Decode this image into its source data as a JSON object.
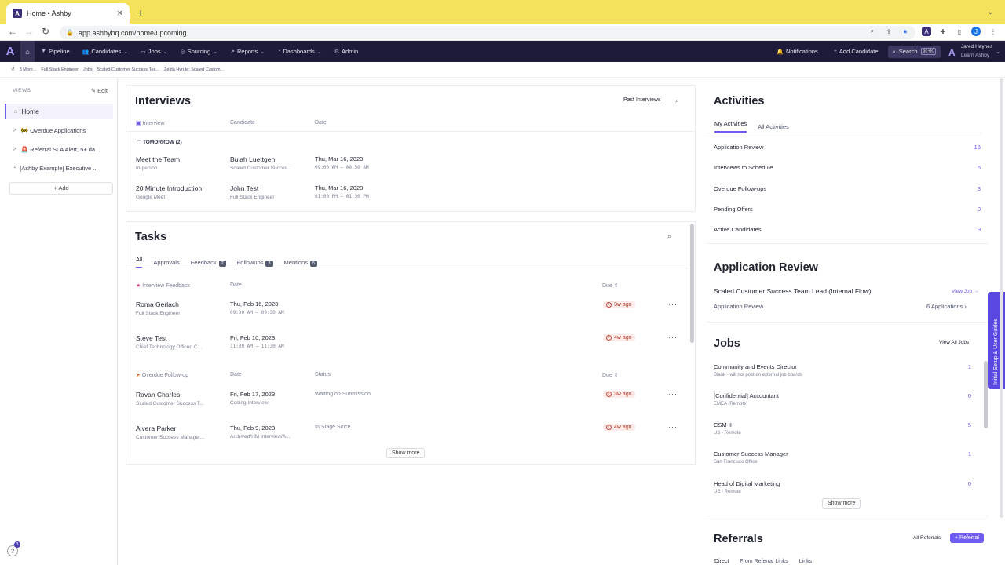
{
  "browser": {
    "tab_title": "Home • Ashby",
    "url": "app.ashbyhq.com/home/upcoming"
  },
  "nav": {
    "items": [
      "Pipeline",
      "Candidates",
      "Jobs",
      "Sourcing",
      "Reports",
      "Dashboards",
      "Admin"
    ],
    "notifications": "Notifications",
    "add_candidate": "Add Candidate",
    "search": "Search",
    "search_kbd": "⌘+K",
    "user_name": "Jared Haynes",
    "user_sub": "Learn Ashby"
  },
  "breadcrumbs": [
    "3 More...",
    "Full Stack Engineer",
    "Jobs",
    "Scaled Customer Success Tea...",
    "Zelda Hyrule: Scaled Custom..."
  ],
  "sidebar": {
    "heading": "VIEWS",
    "edit": "Edit",
    "items": [
      {
        "label": "Home",
        "icon": "home-icon"
      },
      {
        "label": "🚧 Overdue Applications",
        "icon": "chart-icon"
      },
      {
        "label": "🚨 Referral SLA Alert, 5+ da...",
        "icon": "chart-icon"
      },
      {
        "label": "[Ashby Example] Executive ...",
        "icon": "gauge-icon"
      }
    ],
    "add": "+ Add"
  },
  "interviews": {
    "title": "Interviews",
    "past": "Past Interviews",
    "headers": {
      "interview": "Interview",
      "candidate": "Candidate",
      "date": "Date"
    },
    "group": "TOMORROW (2)",
    "rows": [
      {
        "title": "Meet the Team",
        "mode": "In-person",
        "candidate": "Bulah Luettgen",
        "role": "Scaled Customer Succes...",
        "date": "Thu, Mar 16, 2023",
        "time": "09:00 AM — 09:30 AM"
      },
      {
        "title": "20 Minute Introduction",
        "mode": "Google Meet",
        "candidate": "John Test",
        "role": "Full Stack Engineer",
        "date": "Thu, Mar 16, 2023",
        "time": "01:00 PM — 01:30 PM"
      }
    ]
  },
  "tasks": {
    "title": "Tasks",
    "tabs": [
      {
        "label": "All"
      },
      {
        "label": "Approvals"
      },
      {
        "label": "Feedback",
        "count": "2"
      },
      {
        "label": "Followups",
        "count": "3"
      },
      {
        "label": "Mentions",
        "count": "5"
      }
    ],
    "feedback_header": {
      "label": "Interview Feedback",
      "date": "Date",
      "due": "Due"
    },
    "feedback_rows": [
      {
        "name": "Roma Gerlach",
        "role": "Full Stack Engineer",
        "date": "Thu, Feb 16, 2023",
        "time": "09:00 AM — 09:30 AM",
        "due": "3w ago"
      },
      {
        "name": "Steve Test",
        "role": "Chief Technology Officer, C...",
        "date": "Fri, Feb 10, 2023",
        "time": "11:00 AM — 11:30 AM",
        "due": "4w ago"
      }
    ],
    "followup_header": {
      "label": "Overdue Follow-up",
      "date": "Date",
      "status": "Status",
      "due": "Due"
    },
    "followup_rows": [
      {
        "name": "Ravan Charles",
        "role": "Scaled Customer Success T...",
        "date": "Fri, Feb 17, 2023",
        "stage": "Coding Interview",
        "status": "Waiting on Submission",
        "due": "3w ago"
      },
      {
        "name": "Alvera Parker",
        "role": "Customer Success Manager...",
        "date": "Thu, Feb 9, 2023",
        "stage": "Archived/HM Interview/A...",
        "status": "In Stage Since",
        "due": "4w ago"
      }
    ],
    "show_more": "Show more"
  },
  "activities": {
    "title": "Activities",
    "tabs": [
      "My Activities",
      "All Activities"
    ],
    "rows": [
      {
        "label": "Application Review",
        "count": "16"
      },
      {
        "label": "Interviews to Schedule",
        "count": "5"
      },
      {
        "label": "Overdue Follow-ups",
        "count": "3"
      },
      {
        "label": "Pending Offers",
        "count": "0"
      },
      {
        "label": "Active Candidates",
        "count": "9"
      }
    ]
  },
  "app_review": {
    "title": "Application Review",
    "job": "Scaled Customer Success Team Lead (Internal Flow)",
    "view_job": "View Job →",
    "stage": "Application Review",
    "count": "6 Applications ›"
  },
  "jobs": {
    "title": "Jobs",
    "view_all": "View All Jobs",
    "rows": [
      {
        "title": "Community and Events Director",
        "sub": "Blank - will not post on external job boards",
        "count": "1"
      },
      {
        "title": "[Confidential] Accountant",
        "sub": "EMEA (Remote)",
        "count": "0"
      },
      {
        "title": "CSM II",
        "sub": "US - Remote",
        "count": "5"
      },
      {
        "title": "Customer Success Manager",
        "sub": "San Francisco Office",
        "count": "1"
      },
      {
        "title": "Head of Digital Marketing",
        "sub": "US - Remote",
        "count": "0"
      }
    ],
    "show_more": "Show more"
  },
  "referrals": {
    "title": "Referrals",
    "all": "All Referrals",
    "add": "+ Referral",
    "tabs": [
      "Direct",
      "From Referral Links",
      "Links"
    ]
  },
  "setup_tab": "Initial Setup & User Guides",
  "help_badge": "3",
  "colors": {
    "accent": "#6f5cf0",
    "nav_bg": "#1e1b3a",
    "tabstrip": "#f3e25a",
    "overdue": "#b2402f"
  }
}
